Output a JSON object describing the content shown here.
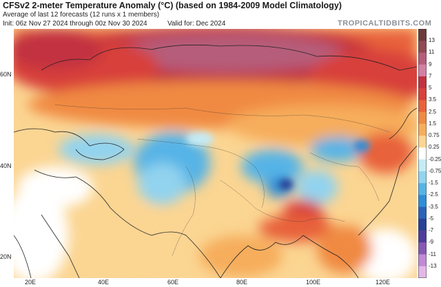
{
  "header": {
    "title": "CFSv2 2-meter Temperature Anomaly (°C) (based on 1984-2009 Model Climatology)",
    "subtitle": "Average of last 12 forecasts (12 runs x 1 members)",
    "init": "Init: 06z Nov 27 2024 through 00z Nov 30 2024",
    "valid": "Valid for: Dec 2024",
    "brand": "TROPICALTIDBITS.COM"
  },
  "axes": {
    "lat_labels": [
      "60N",
      "40N",
      "20N"
    ],
    "lon_labels": [
      "20E",
      "40E",
      "60E",
      "80E",
      "100E",
      "120E"
    ]
  },
  "colorbar": {
    "labels": [
      "13",
      "11",
      "9",
      "7",
      "5",
      "3.5",
      "2.5",
      "1.5",
      "0.75",
      "0.25",
      "-0.25",
      "-0.75",
      "-1.5",
      "-2.5",
      "-3.5",
      "-5",
      "-7",
      "-9",
      "-11",
      "-13"
    ],
    "colors": [
      "#6b3b3b",
      "#8f4a55",
      "#b55d7a",
      "#d37fa3",
      "#c2313f",
      "#d8403b",
      "#e8623a",
      "#f08a43",
      "#f6ad5c",
      "#fbd592",
      "#ffffff",
      "#c5ebf5",
      "#92d3ef",
      "#57b4e6",
      "#2f8ed6",
      "#2a62b8",
      "#273f95",
      "#4e3d9a",
      "#8659b2",
      "#c08ad4",
      "#e3b8e8"
    ]
  },
  "map_colors": {
    "ocean_cold": "#ffffff",
    "land_warm": "#f6ad5c",
    "hot": "#d8403b",
    "very_hot": "#b55d7a",
    "cool": "#92d3ef",
    "cold": "#2f8ed6",
    "coast": "#222222"
  }
}
